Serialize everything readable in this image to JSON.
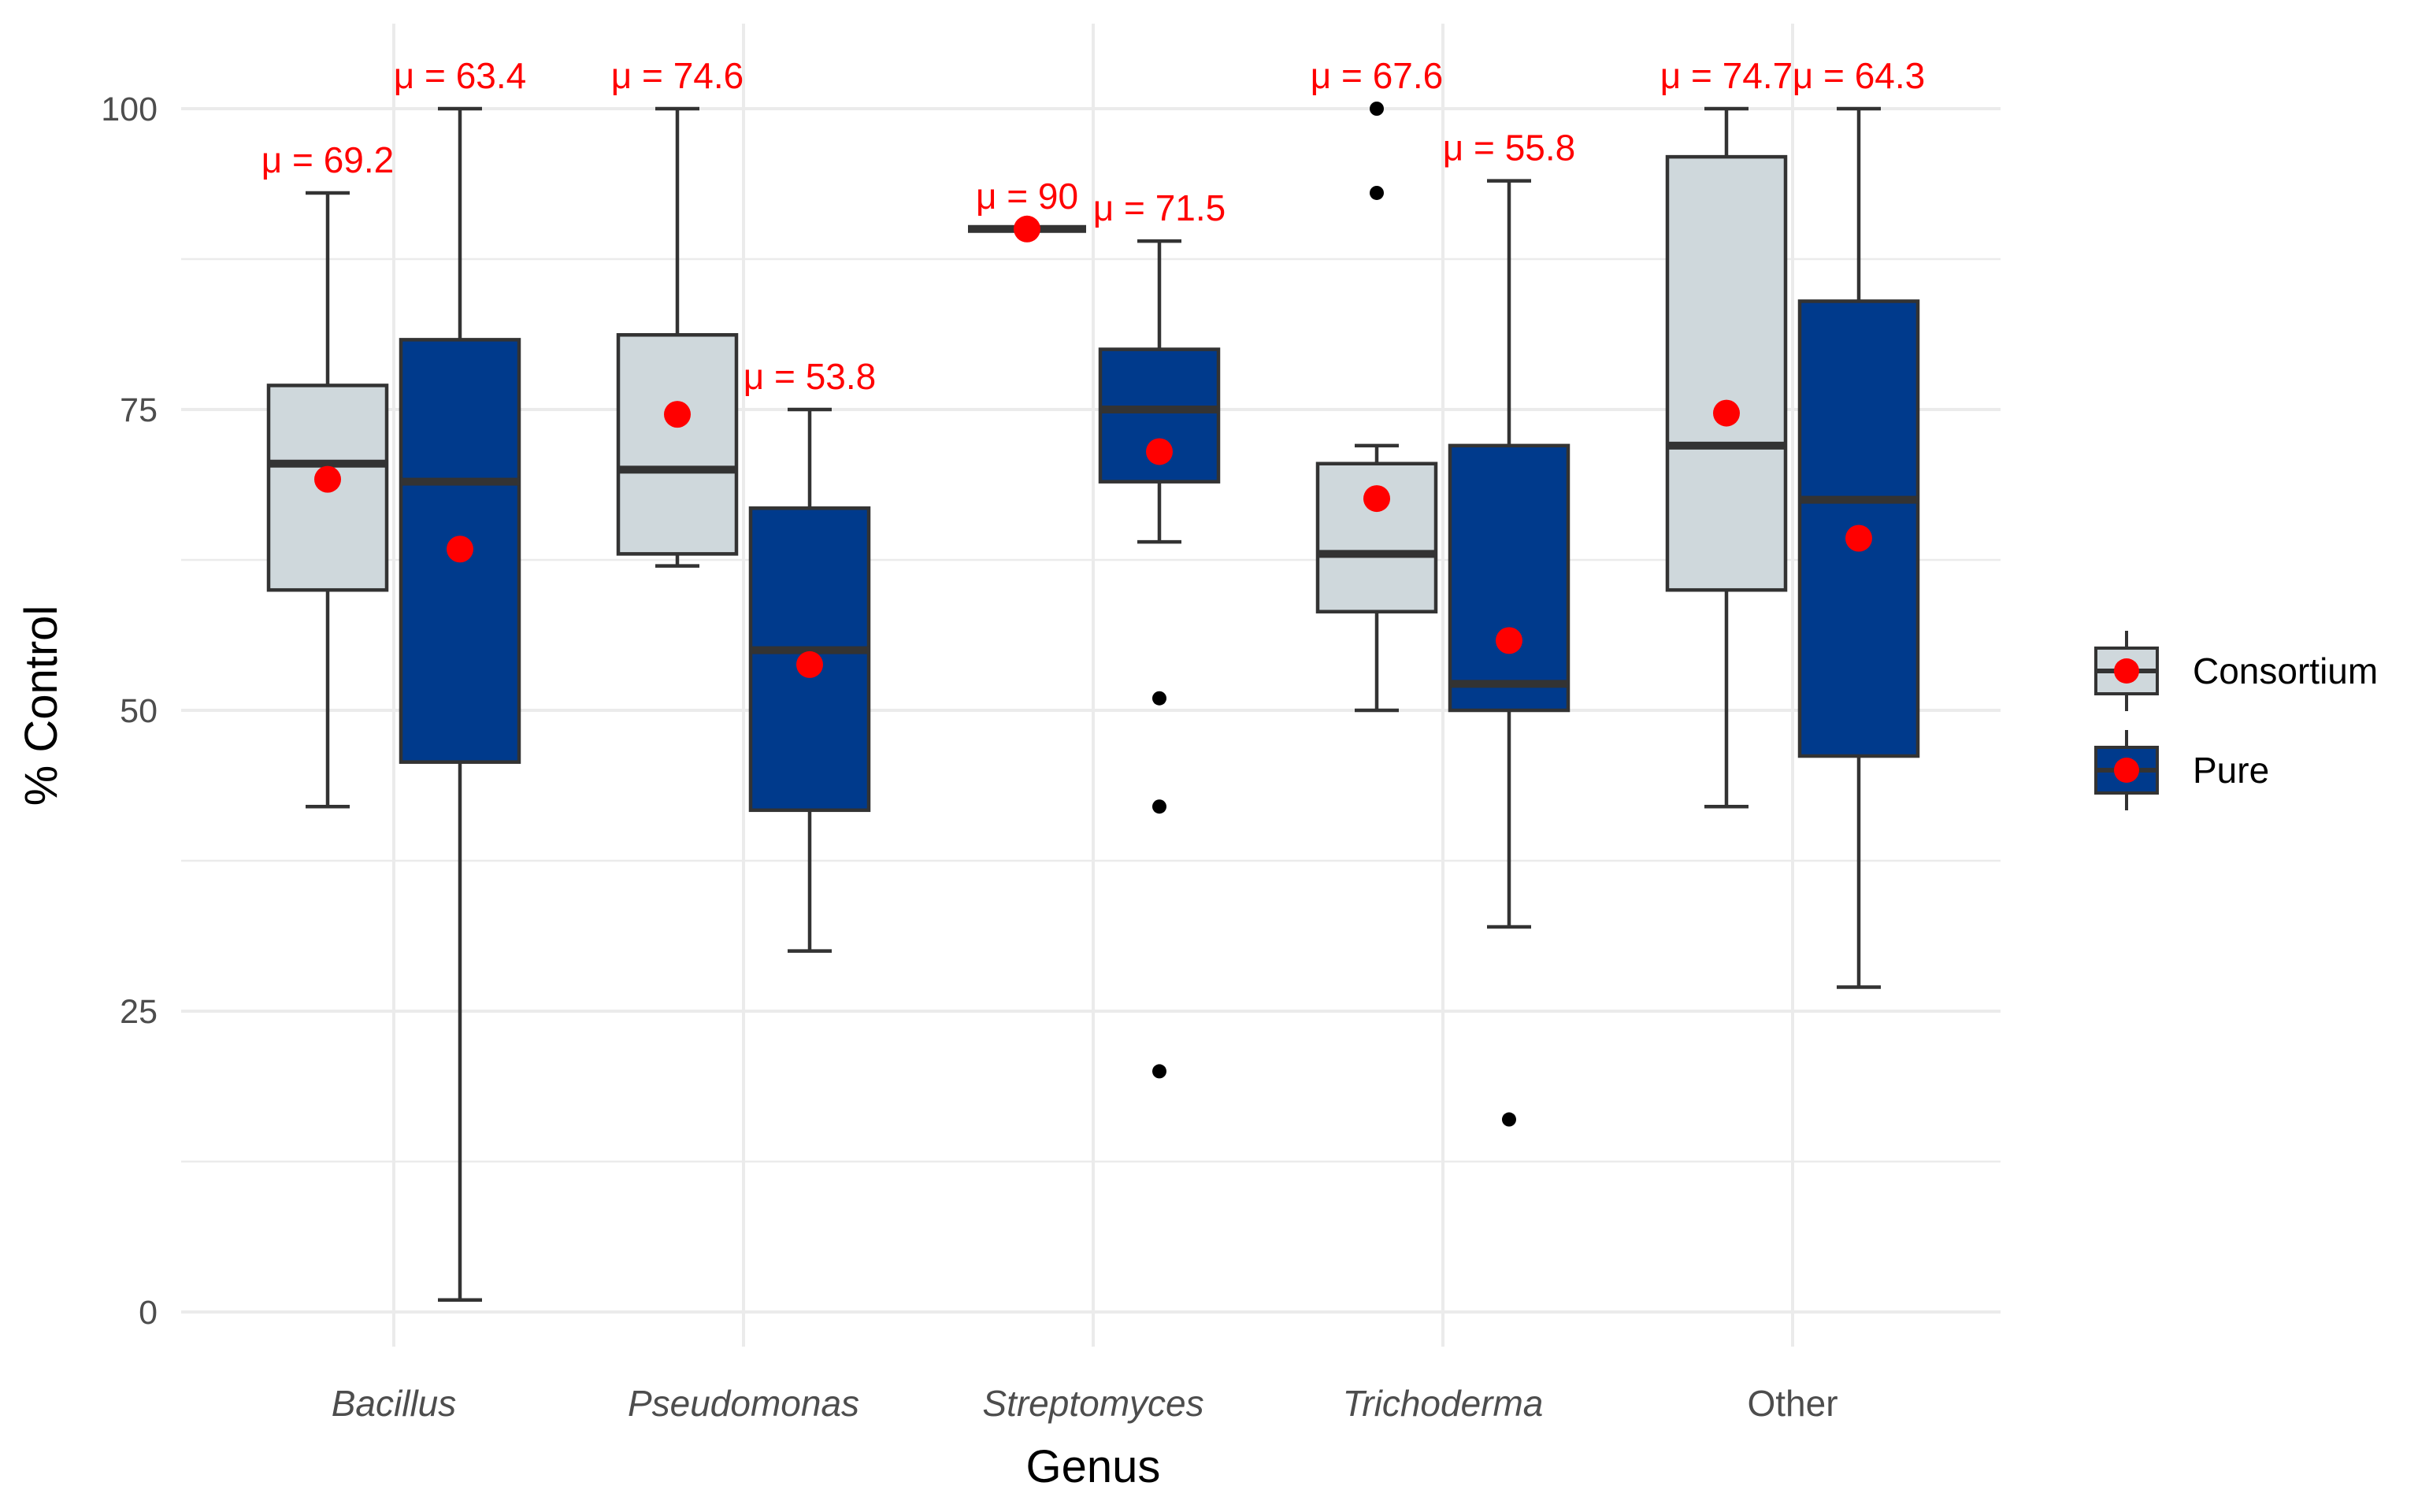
{
  "chart_data": {
    "type": "boxplot",
    "title": "",
    "xlabel": "Genus",
    "ylabel": "% Control",
    "ylim": [
      -5,
      105
    ],
    "yticks": [
      0,
      25,
      50,
      75,
      100
    ],
    "grid": true,
    "legend_position": "right",
    "categories": [
      {
        "label": "Bacillus",
        "italic": true
      },
      {
        "label": "Pseudomonas",
        "italic": true
      },
      {
        "label": "Streptomyces",
        "italic": true
      },
      {
        "label": "Trichoderma",
        "italic": true
      },
      {
        "label": "Other",
        "italic": false
      }
    ],
    "series": [
      {
        "name": "Consortium",
        "fill": "#cfd8dc",
        "boxes": [
          {
            "whisker_low": 42,
            "q1": 60,
            "median": 70.5,
            "q3": 77,
            "whisker_high": 93,
            "mean": 69.2,
            "mean_label": "μ = 69.2",
            "outliers": []
          },
          {
            "whisker_low": 62,
            "q1": 63,
            "median": 70,
            "q3": 81.2,
            "whisker_high": 100,
            "mean": 74.6,
            "mean_label": "μ = 74.6",
            "outliers": []
          },
          {
            "whisker_low": 90,
            "q1": 90,
            "median": 90,
            "q3": 90,
            "whisker_high": 90,
            "mean": 90,
            "mean_label": "μ = 90",
            "outliers": []
          },
          {
            "whisker_low": 50,
            "q1": 58.2,
            "median": 63,
            "q3": 70.5,
            "whisker_high": 72,
            "mean": 67.6,
            "mean_label": "μ = 67.6",
            "outliers": [
              93,
              100
            ]
          },
          {
            "whisker_low": 42,
            "q1": 60,
            "median": 72,
            "q3": 96,
            "whisker_high": 100,
            "mean": 74.7,
            "mean_label": "μ = 74.7",
            "outliers": []
          }
        ]
      },
      {
        "name": "Pure",
        "fill": "#003a8c",
        "boxes": [
          {
            "whisker_low": 1,
            "q1": 45.7,
            "median": 69,
            "q3": 80.8,
            "whisker_high": 100,
            "mean": 63.4,
            "mean_label": "μ = 63.4",
            "outliers": []
          },
          {
            "whisker_low": 30,
            "q1": 41.7,
            "median": 55,
            "q3": 66.8,
            "whisker_high": 75,
            "mean": 53.8,
            "mean_label": "μ = 53.8",
            "outliers": []
          },
          {
            "whisker_low": 64,
            "q1": 69,
            "median": 75,
            "q3": 80,
            "whisker_high": 89,
            "mean": 71.5,
            "mean_label": "μ = 71.5",
            "outliers": [
              51,
              42,
              20
            ]
          },
          {
            "whisker_low": 32,
            "q1": 50,
            "median": 52.2,
            "q3": 72,
            "whisker_high": 94,
            "mean": 55.8,
            "mean_label": "μ = 55.8",
            "outliers": [
              16
            ]
          },
          {
            "whisker_low": 27,
            "q1": 46.2,
            "median": 67.5,
            "q3": 84,
            "whisker_high": 100,
            "mean": 64.3,
            "mean_label": "μ = 64.3",
            "outliers": []
          }
        ]
      }
    ],
    "mean_marker_color": "#ff0000",
    "mean_label_color": "#ff0000",
    "legend": [
      {
        "name": "Consortium",
        "fill": "#cfd8dc"
      },
      {
        "name": "Pure",
        "fill": "#003a8c"
      }
    ]
  }
}
